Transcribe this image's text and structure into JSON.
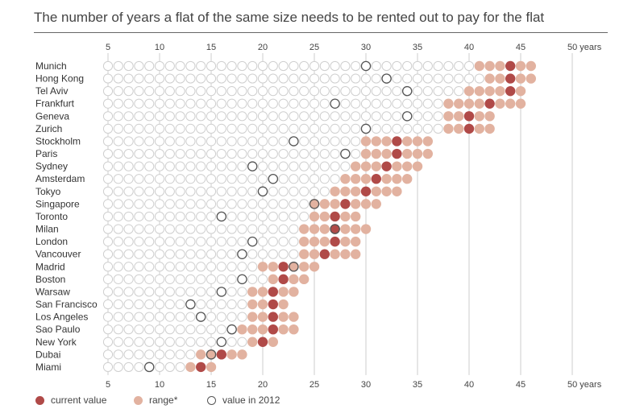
{
  "chart_data": {
    "type": "scatter",
    "title": "The number of years a flat of the same size needs to be rented out to pay for the flat",
    "xlabel": "years",
    "xlim": [
      5,
      50
    ],
    "xticks": [
      {
        "value": 5,
        "label": "5"
      },
      {
        "value": 10,
        "label": "10"
      },
      {
        "value": 15,
        "label": "15"
      },
      {
        "value": 20,
        "label": "20"
      },
      {
        "value": 25,
        "label": "25"
      },
      {
        "value": 30,
        "label": "30"
      },
      {
        "value": 35,
        "label": "35"
      },
      {
        "value": 40,
        "label": "40"
      },
      {
        "value": 45,
        "label": "45"
      },
      {
        "value": 50,
        "label": "50 years"
      }
    ],
    "gridlines": [
      5,
      10,
      15,
      20,
      25,
      30,
      35,
      40,
      45,
      50
    ],
    "colors": {
      "current": "#b04a48",
      "range": "#e2b2a0",
      "empty_stroke": "#cfcfcf",
      "value2012_stroke": "#555555",
      "grid": "#cccccc"
    },
    "legend": {
      "placement": "bottom-left",
      "items": [
        {
          "key": "current",
          "label": "current value"
        },
        {
          "key": "range",
          "label": "range*"
        },
        {
          "key": "value2012",
          "label": "value in 2012"
        }
      ]
    },
    "series": [
      {
        "city": "Munich",
        "range_min": 41,
        "range_max": 46,
        "current": 44,
        "value_2012": 30
      },
      {
        "city": "Hong Kong",
        "range_min": 42,
        "range_max": 46,
        "current": 44,
        "value_2012": 32
      },
      {
        "city": "Tel Aviv",
        "range_min": 40,
        "range_max": 45,
        "current": 44,
        "value_2012": 34
      },
      {
        "city": "Frankfurt",
        "range_min": 38,
        "range_max": 45,
        "current": 42,
        "value_2012": 27
      },
      {
        "city": "Geneva",
        "range_min": 38,
        "range_max": 42,
        "current": 40,
        "value_2012": 34
      },
      {
        "city": "Zurich",
        "range_min": 38,
        "range_max": 42,
        "current": 40,
        "value_2012": 30
      },
      {
        "city": "Stockholm",
        "range_min": 30,
        "range_max": 36,
        "current": 33,
        "value_2012": 23
      },
      {
        "city": "Paris",
        "range_min": 30,
        "range_max": 36,
        "current": 33,
        "value_2012": 28
      },
      {
        "city": "Sydney",
        "range_min": 29,
        "range_max": 35,
        "current": 32,
        "value_2012": 19
      },
      {
        "city": "Amsterdam",
        "range_min": 28,
        "range_max": 34,
        "current": 31,
        "value_2012": 21
      },
      {
        "city": "Tokyo",
        "range_min": 27,
        "range_max": 33,
        "current": 30,
        "value_2012": 20
      },
      {
        "city": "Singapore",
        "range_min": 25,
        "range_max": 31,
        "current": 28,
        "value_2012": 25
      },
      {
        "city": "Toronto",
        "range_min": 25,
        "range_max": 29,
        "current": 27,
        "value_2012": 16
      },
      {
        "city": "Milan",
        "range_min": 24,
        "range_max": 30,
        "current": 27,
        "value_2012": 27
      },
      {
        "city": "London",
        "range_min": 24,
        "range_max": 29,
        "current": 27,
        "value_2012": 19
      },
      {
        "city": "Vancouver",
        "range_min": 24,
        "range_max": 29,
        "current": 26,
        "value_2012": 18
      },
      {
        "city": "Madrid",
        "range_min": 20,
        "range_max": 25,
        "current": 22,
        "value_2012": 23
      },
      {
        "city": "Boston",
        "range_min": 21,
        "range_max": 24,
        "current": 22,
        "value_2012": 18
      },
      {
        "city": "Warsaw",
        "range_min": 19,
        "range_max": 23,
        "current": 21,
        "value_2012": 16
      },
      {
        "city": "San Francisco",
        "range_min": 19,
        "range_max": 22,
        "current": 21,
        "value_2012": 13
      },
      {
        "city": "Los Angeles",
        "range_min": 19,
        "range_max": 23,
        "current": 21,
        "value_2012": 14
      },
      {
        "city": "Sao Paulo",
        "range_min": 18,
        "range_max": 23,
        "current": 21,
        "value_2012": 17
      },
      {
        "city": "New York",
        "range_min": 19,
        "range_max": 21,
        "current": 20,
        "value_2012": 16
      },
      {
        "city": "Dubai",
        "range_min": 14,
        "range_max": 18,
        "current": 16,
        "value_2012": 15
      },
      {
        "city": "Miami",
        "range_min": 13,
        "range_max": 15,
        "current": 14,
        "value_2012": 9
      }
    ]
  }
}
